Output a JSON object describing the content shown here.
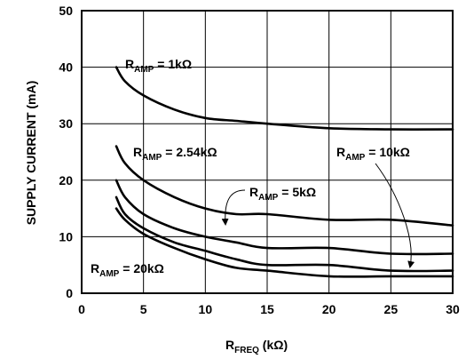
{
  "chart_data": {
    "type": "line",
    "xlabel": {
      "main": "R",
      "sub": "FREQ",
      "unit": " (kΩ)"
    },
    "ylabel": "SUPPLY CURRENT (mA)",
    "xlim": [
      0,
      30
    ],
    "ylim": [
      0,
      50
    ],
    "xticks": [
      0,
      5,
      10,
      15,
      20,
      25,
      30
    ],
    "yticks": [
      0,
      10,
      20,
      30,
      40,
      50
    ],
    "grid": "vertical and horizontal at major ticks",
    "series": [
      {
        "name": "R_AMP = 1kΩ",
        "label": {
          "main": "R",
          "sub": "AMP",
          "rest": " = 1kΩ"
        },
        "x": [
          2.8,
          3.5,
          5,
          7.5,
          10,
          12.5,
          15,
          20,
          25,
          30
        ],
        "y": [
          40,
          37.5,
          35,
          32.5,
          31,
          30.5,
          30,
          29.2,
          29,
          29
        ]
      },
      {
        "name": "R_AMP = 2.54kΩ",
        "label": {
          "main": "R",
          "sub": "AMP",
          "rest": " = 2.54kΩ"
        },
        "x": [
          2.8,
          3.5,
          5,
          7.5,
          10,
          12.5,
          15,
          20,
          25,
          30
        ],
        "y": [
          26,
          23,
          20,
          17,
          15,
          14,
          14,
          13,
          13,
          12
        ]
      },
      {
        "name": "R_AMP = 5kΩ",
        "label": {
          "main": "R",
          "sub": "AMP",
          "rest": " = 5kΩ"
        },
        "x": [
          2.8,
          3.5,
          5,
          7.5,
          10,
          12.5,
          15,
          20,
          25,
          30
        ],
        "y": [
          20,
          17,
          14,
          11.5,
          10,
          9,
          8,
          8,
          7,
          7
        ]
      },
      {
        "name": "R_AMP = 10kΩ",
        "label": {
          "main": "R",
          "sub": "AMP",
          "rest": " = 10kΩ"
        },
        "x": [
          2.8,
          3.5,
          5,
          7.5,
          10,
          12.5,
          15,
          20,
          25,
          30
        ],
        "y": [
          17,
          14,
          11.5,
          9,
          7.5,
          6,
          5,
          5,
          4,
          4
        ]
      },
      {
        "name": "R_AMP = 20kΩ",
        "label": {
          "main": "R",
          "sub": "AMP",
          "rest": " = 20kΩ"
        },
        "x": [
          2.8,
          3.5,
          5,
          7.5,
          10,
          12.5,
          15,
          20,
          25,
          30
        ],
        "y": [
          15,
          13,
          10.5,
          8,
          6,
          4.5,
          4,
          3,
          3,
          3
        ]
      }
    ]
  }
}
